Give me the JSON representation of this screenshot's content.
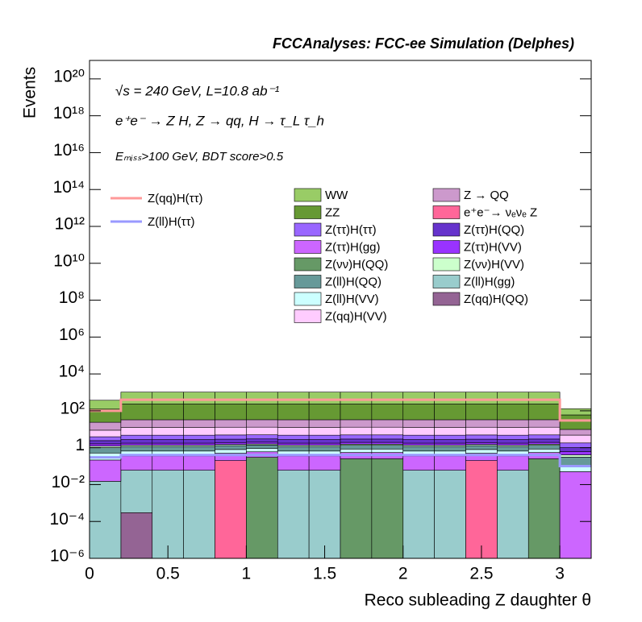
{
  "chart_data": {
    "type": "stacked_histogram",
    "title": "FCCAnalyses: FCC-ee Simulation (Delphes)",
    "annotations": [
      "√s = 240 GeV, L=10.8 ab⁻¹",
      "e⁺e⁻ → Z H, Z → qq, H → τ_L τ_h",
      "Eₘᵢₛₛ>100 GeV, BDT score>0.5"
    ],
    "xlabel": "Reco subleading Z daughter θ",
    "ylabel": "Events",
    "log_y": true,
    "grid": false,
    "bins": [
      0,
      0.2,
      0.4,
      0.6,
      0.8,
      1.0,
      1.2,
      1.4,
      1.6,
      1.8,
      2.0,
      2.2,
      2.4,
      2.6,
      2.8,
      3.0,
      3.2
    ],
    "xlim": [
      0,
      3.2
    ],
    "xticks": [
      0,
      0.5,
      1,
      1.5,
      2,
      2.5,
      3
    ],
    "ylim": [
      1e-06,
      1e+21
    ],
    "yticks": [
      {
        "value": 1e-06,
        "label": "10⁻⁶"
      },
      {
        "value": 0.0001,
        "label": "10⁻⁴"
      },
      {
        "value": 0.01,
        "label": "10⁻²"
      },
      1,
      {
        "value": 100,
        "label": "10²"
      },
      {
        "value": 10000,
        "label": "10⁴"
      },
      {
        "value": 1000000.0,
        "label": "10⁶"
      },
      {
        "value": 100000000.0,
        "label": "10⁸"
      },
      {
        "value": 10000000000.0,
        "label": "10¹⁰"
      },
      {
        "value": 1000000000000.0,
        "label": "10¹²"
      },
      {
        "value": 100000000000000.0,
        "label": "10¹⁴"
      },
      {
        "value": 1e+16,
        "label": "10¹⁶"
      },
      {
        "value": 1e+18,
        "label": "10¹⁸"
      },
      {
        "value": 1e+20,
        "label": "10²⁰"
      }
    ],
    "series": [
      {
        "name": "Z(qq)H(QQ)",
        "color": "#946494",
        "values": [
          0,
          0.0003,
          0,
          0,
          0,
          0,
          0,
          0,
          0,
          0,
          0,
          0,
          0,
          0,
          0,
          0
        ]
      },
      {
        "name": "Z(ll)H(gg)",
        "color": "#99cccc",
        "values": [
          0.015,
          0.06,
          0.06,
          0.06,
          0,
          0,
          0.06,
          0.06,
          0,
          0,
          0.06,
          0.06,
          0,
          0.06,
          0,
          0
        ]
      },
      {
        "name": "e⁺e⁻→ νₑνₑ Z",
        "color": "#ff6699",
        "values": [
          0,
          0,
          0,
          0,
          0.2,
          0,
          0,
          0,
          0,
          0,
          0,
          0,
          0.2,
          0,
          0,
          0
        ]
      },
      {
        "name": "Z(νν)H(QQ)",
        "color": "#669966",
        "values": [
          0,
          0,
          0,
          0,
          0,
          0.3,
          0,
          0,
          0.25,
          0.25,
          0,
          0,
          0,
          0,
          0.25,
          0
        ]
      },
      {
        "name": "Z(ττ)H(gg)",
        "color": "#cc66ff",
        "values": [
          0.2,
          0.3,
          0.3,
          0.3,
          0.3,
          0.3,
          0.3,
          0.3,
          0.3,
          0.3,
          0.3,
          0.3,
          0.3,
          0.3,
          0.3,
          0.05
        ]
      },
      {
        "name": "Z(ll)H(VV)",
        "color": "#ccffff",
        "values": [
          0.3,
          0.3,
          0.3,
          0.3,
          0.3,
          0.3,
          0.3,
          0.3,
          0.3,
          0.3,
          0.3,
          0.3,
          0.3,
          0.3,
          0.3,
          0.06
        ]
      },
      {
        "name": "Z(ll)H(QQ)",
        "color": "#669999",
        "values": [
          0.5,
          0.5,
          0.5,
          0.5,
          0.5,
          0.5,
          0.5,
          0.5,
          0.5,
          0.5,
          0.5,
          0.5,
          0.5,
          0.5,
          0.5,
          0.2
        ]
      },
      {
        "name": "Z(νν)H(VV)",
        "color": "#ccffcc",
        "values": [
          0.2,
          0.2,
          0.2,
          0.2,
          0.2,
          0.2,
          0.2,
          0.2,
          0.2,
          0.2,
          0.2,
          0.2,
          0.2,
          0.2,
          0.2,
          0.1
        ]
      },
      {
        "name": "Z(ττ)H(VV)",
        "color": "#9933ff",
        "values": [
          0.4,
          0.4,
          0.4,
          0.4,
          0.4,
          0.4,
          0.4,
          0.4,
          0.4,
          0.4,
          0.4,
          0.4,
          0.4,
          0.4,
          0.4,
          0.2
        ]
      },
      {
        "name": "Z(ττ)H(QQ)",
        "color": "#6633cc",
        "values": [
          0.8,
          1,
          1,
          1,
          1,
          1,
          1,
          1,
          1,
          1,
          1,
          1,
          1,
          1,
          1,
          0.4
        ]
      },
      {
        "name": "Z(ττ)H(ττ)",
        "color": "#9966ff",
        "values": [
          1.5,
          2,
          2,
          2,
          2,
          2,
          2,
          2,
          2,
          2,
          2,
          2,
          2,
          2,
          2,
          0.8
        ]
      },
      {
        "name": "Z(qq)H(VV)",
        "color": "#ffccff",
        "values": [
          5,
          8,
          8,
          8,
          8,
          8,
          8,
          8,
          8,
          8,
          8,
          8,
          8,
          8,
          8,
          3
        ]
      },
      {
        "name": "Z → QQ",
        "color": "#cc99cc",
        "values": [
          15,
          20,
          20,
          20,
          20,
          20,
          20,
          20,
          20,
          20,
          20,
          20,
          20,
          20,
          20,
          5
        ]
      },
      {
        "name": "ZZ",
        "color": "#669933",
        "values": [
          100,
          200,
          200,
          200,
          200,
          200,
          200,
          200,
          200,
          200,
          200,
          200,
          200,
          200,
          200,
          50
        ]
      },
      {
        "name": "WW",
        "color": "#99cc66",
        "values": [
          250,
          800,
          800,
          800,
          800,
          800,
          800,
          800,
          800,
          800,
          800,
          800,
          800,
          800,
          800,
          70
        ]
      }
    ],
    "signals": [
      {
        "name": "Z(qq)H(ττ)",
        "color": "#ff9999",
        "values": [
          100,
          400,
          400,
          400,
          400,
          400,
          400,
          400,
          400,
          400,
          400,
          400,
          400,
          400,
          400,
          30
        ]
      },
      {
        "name": "Z(ll)H(ττ)",
        "color": "#9999ff",
        "values": [
          0.3,
          0.4,
          0.4,
          0.4,
          0.4,
          0.4,
          0.4,
          0.4,
          0.4,
          0.4,
          0.4,
          0.4,
          0.4,
          0.4,
          0.4,
          0.1
        ]
      }
    ]
  }
}
